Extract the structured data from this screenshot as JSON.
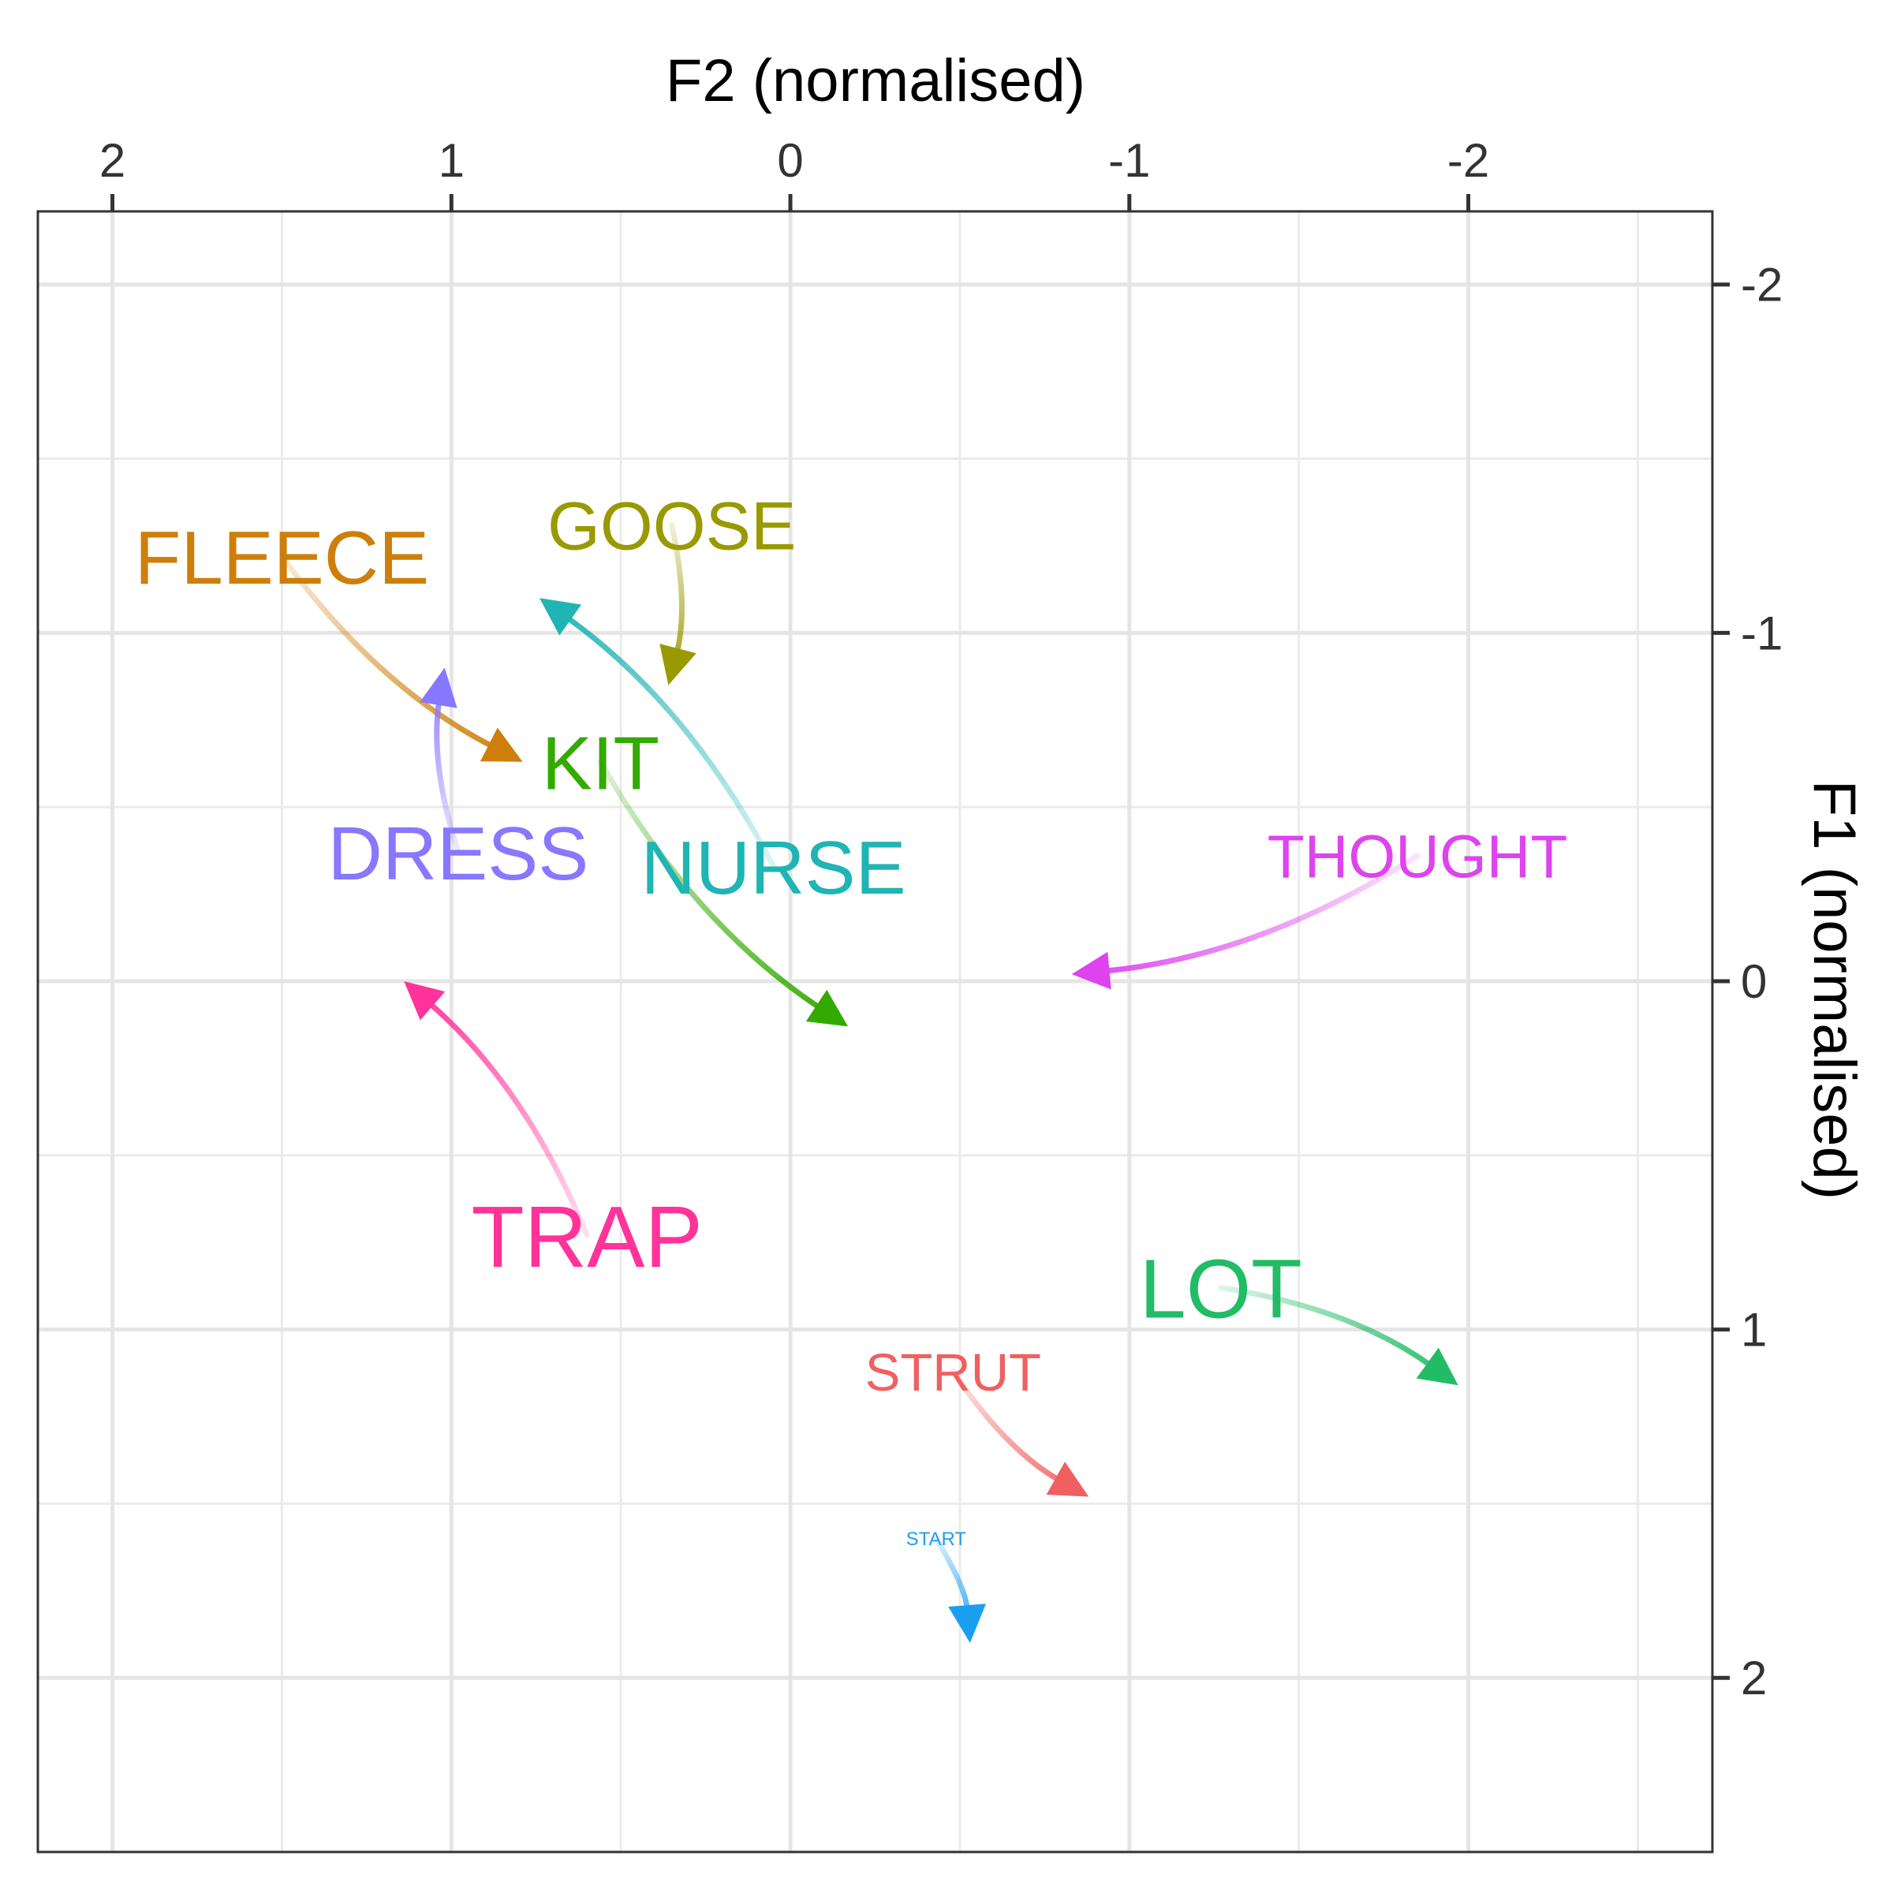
{
  "chart_data": {
    "type": "scatter",
    "subtype": "vowel-trajectory arrows",
    "title": "",
    "xlabel": "F2 (normalised)",
    "ylabel": "F1 (normalised)",
    "x_axis_position": "top",
    "y_axis_position": "right",
    "x_reversed": true,
    "y_reversed": true,
    "xlim": [
      2.22,
      -2.72
    ],
    "ylim": [
      -2.21,
      2.5
    ],
    "x_ticks": [
      2,
      1,
      0,
      -1,
      -2
    ],
    "x_tick_labels": [
      "2",
      "1",
      "0",
      "-1",
      "-2"
    ],
    "y_ticks": [
      -2,
      -1,
      0,
      1,
      2
    ],
    "y_tick_labels": [
      "-2",
      "-1",
      "0",
      "1",
      "2"
    ],
    "grid": true,
    "legend": "none",
    "series": [
      {
        "name": "FLEECE",
        "color": "#CD7F0A",
        "label_size": 1.0,
        "x_start": 1.5,
        "y_start": -1.22,
        "x_end": 0.79,
        "y_end": -0.63
      },
      {
        "name": "GOOSE",
        "color": "#999900",
        "label_size": 0.9,
        "x_start": 0.35,
        "y_start": -1.31,
        "x_end": 0.36,
        "y_end": -0.85
      },
      {
        "name": "KIT",
        "color": "#33AA00",
        "label_size": 1.0,
        "x_start": 0.56,
        "y_start": -0.63,
        "x_end": -0.17,
        "y_end": 0.13
      },
      {
        "name": "DRESS",
        "color": "#8877FF",
        "label_size": 1.0,
        "x_start": 0.98,
        "y_start": -0.37,
        "x_end": 1.02,
        "y_end": -0.9
      },
      {
        "name": "NURSE",
        "color": "#20B4B4",
        "label_size": 1.0,
        "x_start": 0.05,
        "y_start": -0.33,
        "x_end": 0.74,
        "y_end": -1.1
      },
      {
        "name": "THOUGHT",
        "color": "#DD44EE",
        "label_size": 0.8,
        "x_start": -1.85,
        "y_start": -0.36,
        "x_end": -0.83,
        "y_end": -0.02
      },
      {
        "name": "TRAP",
        "color": "#FF3399",
        "label_size": 1.15,
        "x_start": 0.6,
        "y_start": 0.73,
        "x_end": 1.14,
        "y_end": -0.0
      },
      {
        "name": "LOT",
        "color": "#22BB66",
        "label_size": 1.1,
        "x_start": -1.27,
        "y_start": 0.88,
        "x_end": -1.97,
        "y_end": 1.16
      },
      {
        "name": "STRUT",
        "color": "#F06060",
        "label_size": 0.7,
        "x_start": -0.48,
        "y_start": 1.12,
        "x_end": -0.88,
        "y_end": 1.48
      },
      {
        "name": "START",
        "color": "#1A9FF0",
        "label_size": 0.25,
        "x_start": -0.43,
        "y_start": 1.6,
        "x_end": -0.53,
        "y_end": 1.9
      }
    ]
  }
}
